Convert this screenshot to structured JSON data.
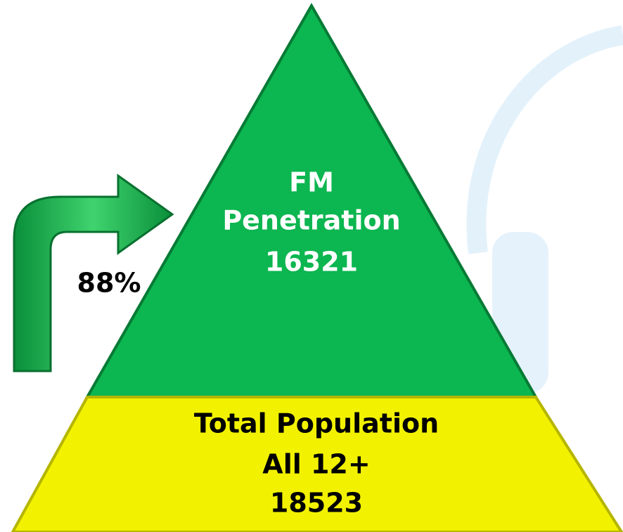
{
  "pyramid": {
    "top": {
      "lines": [
        "FM",
        "Penetration",
        "16321"
      ]
    },
    "bottom": {
      "lines": [
        "Total Population",
        "All 12+",
        "18523"
      ]
    }
  },
  "arrow": {
    "label": "88%"
  }
}
